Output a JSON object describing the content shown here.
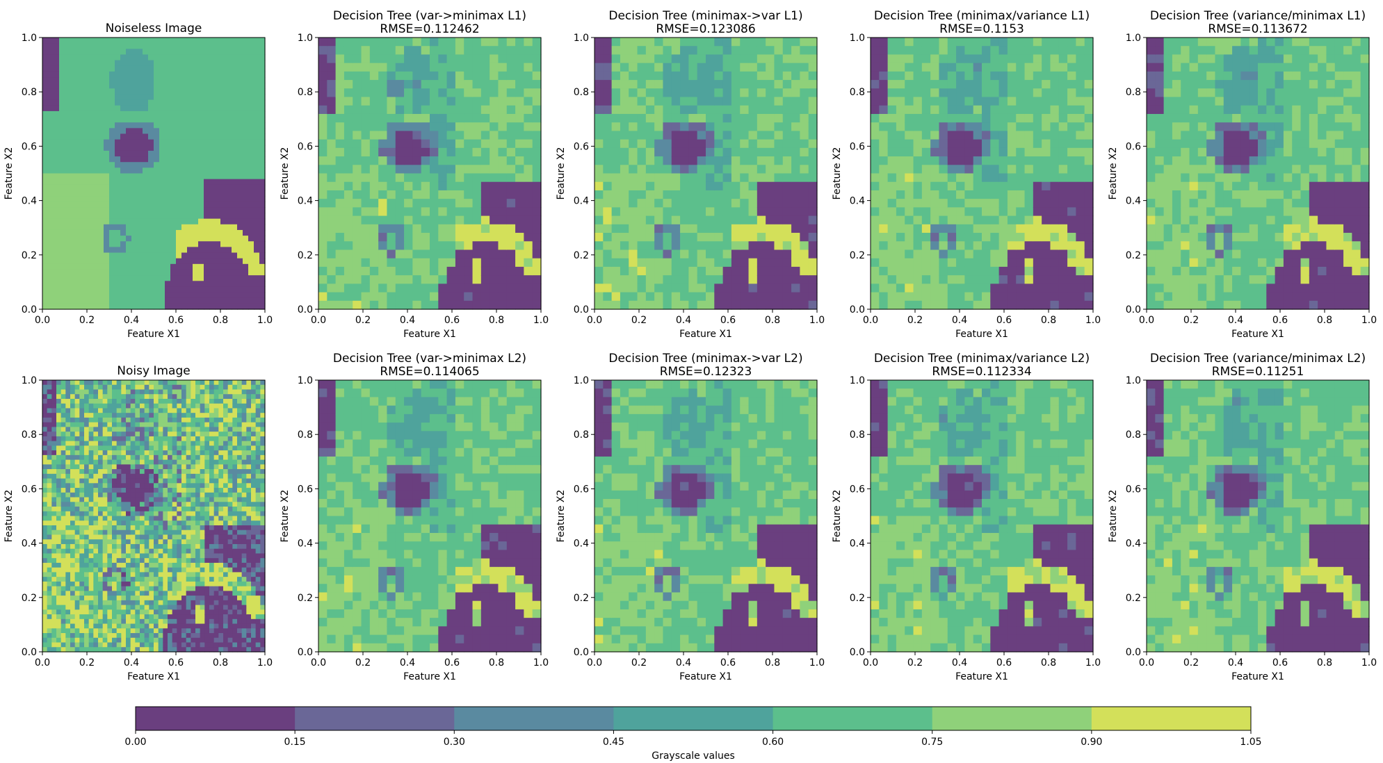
{
  "chart_data": [
    {
      "type": "heatmap",
      "title": "Noiseless Image",
      "xlabel": "Feature X1",
      "ylabel": "Feature X2",
      "xlim": [
        0,
        1
      ],
      "ylim": [
        0,
        1
      ],
      "x_ticks": [
        "0.0",
        "0.2",
        "0.4",
        "0.6",
        "0.8",
        "1.0"
      ],
      "y_ticks": [
        "0.0",
        "0.2",
        "0.4",
        "0.6",
        "0.8",
        "1.0"
      ],
      "colormap": "viridis"
    },
    {
      "type": "heatmap",
      "title": "Decision Tree (var->minimax L1)",
      "subtitle": "RMSE=0.112462",
      "rmse": 0.112462,
      "xlabel": "Feature X1",
      "ylabel": "Feature X2",
      "xlim": [
        0,
        1
      ],
      "ylim": [
        0,
        1
      ],
      "x_ticks": [
        "0.0",
        "0.2",
        "0.4",
        "0.6",
        "0.8",
        "1.0"
      ],
      "y_ticks": [
        "0.0",
        "0.2",
        "0.4",
        "0.6",
        "0.8",
        "1.0"
      ],
      "colormap": "viridis"
    },
    {
      "type": "heatmap",
      "title": "Decision Tree (minimax->var L1)",
      "subtitle": "RMSE=0.123086",
      "rmse": 0.123086,
      "xlabel": "Feature X1",
      "ylabel": "Feature X2",
      "xlim": [
        0,
        1
      ],
      "ylim": [
        0,
        1
      ],
      "x_ticks": [
        "0.0",
        "0.2",
        "0.4",
        "0.6",
        "0.8",
        "1.0"
      ],
      "y_ticks": [
        "0.0",
        "0.2",
        "0.4",
        "0.6",
        "0.8",
        "1.0"
      ],
      "colormap": "viridis"
    },
    {
      "type": "heatmap",
      "title": "Decision Tree (minimax/variance L1)",
      "subtitle": "RMSE=0.1153",
      "rmse": 0.1153,
      "xlabel": "Feature X1",
      "ylabel": "Feature X2",
      "xlim": [
        0,
        1
      ],
      "ylim": [
        0,
        1
      ],
      "x_ticks": [
        "0.0",
        "0.2",
        "0.4",
        "0.6",
        "0.8",
        "1.0"
      ],
      "y_ticks": [
        "0.0",
        "0.2",
        "0.4",
        "0.6",
        "0.8",
        "1.0"
      ],
      "colormap": "viridis"
    },
    {
      "type": "heatmap",
      "title": "Decision Tree (variance/minimax L1)",
      "subtitle": "RMSE=0.113672",
      "rmse": 0.113672,
      "xlabel": "Feature X1",
      "ylabel": "Feature X2",
      "xlim": [
        0,
        1
      ],
      "ylim": [
        0,
        1
      ],
      "x_ticks": [
        "0.0",
        "0.2",
        "0.4",
        "0.6",
        "0.8",
        "1.0"
      ],
      "y_ticks": [
        "0.0",
        "0.2",
        "0.4",
        "0.6",
        "0.8",
        "1.0"
      ],
      "colormap": "viridis"
    },
    {
      "type": "heatmap",
      "title": "Noisy Image",
      "xlabel": "Feature X1",
      "ylabel": "Feature X2",
      "xlim": [
        0,
        1
      ],
      "ylim": [
        0,
        1
      ],
      "x_ticks": [
        "0.0",
        "0.2",
        "0.4",
        "0.6",
        "0.8",
        "1.0"
      ],
      "y_ticks": [
        "0.0",
        "0.2",
        "0.4",
        "0.6",
        "0.8",
        "1.0"
      ],
      "colormap": "viridis"
    },
    {
      "type": "heatmap",
      "title": "Decision Tree (var->minimax L2)",
      "subtitle": "RMSE=0.114065",
      "rmse": 0.114065,
      "xlabel": "Feature X1",
      "ylabel": "Feature X2",
      "xlim": [
        0,
        1
      ],
      "ylim": [
        0,
        1
      ],
      "x_ticks": [
        "0.0",
        "0.2",
        "0.4",
        "0.6",
        "0.8",
        "1.0"
      ],
      "y_ticks": [
        "0.0",
        "0.2",
        "0.4",
        "0.6",
        "0.8",
        "1.0"
      ],
      "colormap": "viridis"
    },
    {
      "type": "heatmap",
      "title": "Decision Tree (minimax->var L2)",
      "subtitle": "RMSE=0.12323",
      "rmse": 0.12323,
      "xlabel": "Feature X1",
      "ylabel": "Feature X2",
      "xlim": [
        0,
        1
      ],
      "ylim": [
        0,
        1
      ],
      "x_ticks": [
        "0.0",
        "0.2",
        "0.4",
        "0.6",
        "0.8",
        "1.0"
      ],
      "y_ticks": [
        "0.0",
        "0.2",
        "0.4",
        "0.6",
        "0.8",
        "1.0"
      ],
      "colormap": "viridis"
    },
    {
      "type": "heatmap",
      "title": "Decision Tree (minimax/variance L2)",
      "subtitle": "RMSE=0.112334",
      "rmse": 0.112334,
      "xlabel": "Feature X1",
      "ylabel": "Feature X2",
      "xlim": [
        0,
        1
      ],
      "ylim": [
        0,
        1
      ],
      "x_ticks": [
        "0.0",
        "0.2",
        "0.4",
        "0.6",
        "0.8",
        "1.0"
      ],
      "y_ticks": [
        "0.0",
        "0.2",
        "0.4",
        "0.6",
        "0.8",
        "1.0"
      ],
      "colormap": "viridis"
    },
    {
      "type": "heatmap",
      "title": "Decision Tree (variance/minimax L2)",
      "subtitle": "RMSE=0.11251",
      "rmse": 0.11251,
      "xlabel": "Feature X1",
      "ylabel": "Feature X2",
      "xlim": [
        0,
        1
      ],
      "ylim": [
        0,
        1
      ],
      "x_ticks": [
        "0.0",
        "0.2",
        "0.4",
        "0.6",
        "0.8",
        "1.0"
      ],
      "y_ticks": [
        "0.0",
        "0.2",
        "0.4",
        "0.6",
        "0.8",
        "1.0"
      ],
      "colormap": "viridis"
    }
  ],
  "colorbar": {
    "label": "Grayscale values",
    "boundaries": [
      0.0,
      0.15,
      0.3,
      0.45,
      0.6,
      0.75,
      0.9,
      1.05
    ],
    "tick_labels": [
      "0.00",
      "0.15",
      "0.30",
      "0.45",
      "0.60",
      "0.75",
      "0.90",
      "1.05"
    ],
    "colors": [
      "#6a3f7f",
      "#6a6797",
      "#5a8aa0",
      "#4fa39c",
      "#5cbf8c",
      "#8fd17a",
      "#d3e05a"
    ]
  }
}
